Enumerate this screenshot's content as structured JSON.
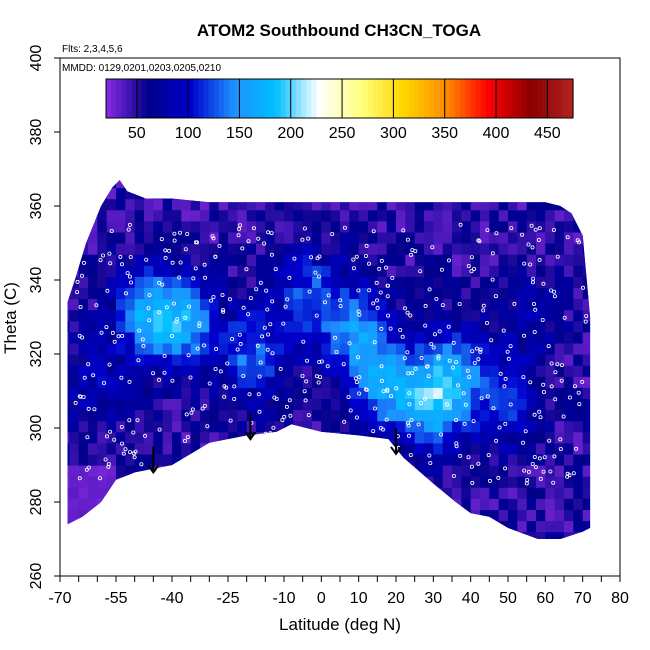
{
  "chart_data": {
    "type": "heatmap",
    "title": "ATOM2 Southbound CH3CN_TOGA",
    "annotations": {
      "flights": "Flts: 2,3,4,5,6",
      "dates": "MMDD: 0129,0201,0203,0205,0210"
    },
    "xlabel": "Latitude (deg N)",
    "ylabel": "Theta (C)",
    "xlim": [
      -70,
      80
    ],
    "ylim": [
      260,
      400
    ],
    "x_ticks": [
      -70,
      -65,
      -60,
      -55,
      -50,
      -45,
      -40,
      -35,
      -30,
      -25,
      -20,
      -15,
      -10,
      -5,
      0,
      5,
      10,
      15,
      20,
      25,
      30,
      35,
      40,
      45,
      50,
      55,
      60,
      65,
      70,
      75,
      80
    ],
    "x_tick_labels": [
      "-70",
      "-55",
      "-40",
      "-25",
      "-10",
      "0",
      "10",
      "20",
      "30",
      "40",
      "50",
      "60",
      "70",
      "80"
    ],
    "x_label_values": [
      -70,
      -55,
      -40,
      -25,
      -10,
      0,
      10,
      20,
      30,
      40,
      50,
      60,
      70,
      80
    ],
    "y_ticks": [
      260,
      280,
      300,
      320,
      340,
      360,
      380,
      400
    ],
    "y_tick_labels": [
      "260",
      "280",
      "300",
      "320",
      "340",
      "360",
      "380",
      "400"
    ],
    "colorbar": {
      "min": 20,
      "max": 475,
      "tick_values": [
        50,
        100,
        150,
        200,
        250,
        300,
        350,
        400,
        450
      ],
      "tick_labels": [
        "50",
        "100",
        "150",
        "200",
        "250",
        "300",
        "350",
        "400",
        "450"
      ],
      "colors": [
        "#8a2be2",
        "#00008b",
        "#0000cd",
        "#1e90ff",
        "#00bfff",
        "#ffffff",
        "#ffff80",
        "#ffd700",
        "#ff8c00",
        "#ff0000",
        "#8b0000",
        "#b22222"
      ]
    },
    "domain_outline": {
      "upper": [
        [
          -68,
          334
        ],
        [
          -66,
          340
        ],
        [
          -63,
          350
        ],
        [
          -59,
          360
        ],
        [
          -56,
          365
        ],
        [
          -54,
          367
        ],
        [
          -52,
          364
        ],
        [
          -47,
          362
        ],
        [
          -40,
          362
        ],
        [
          -30,
          361
        ],
        [
          -20,
          361
        ],
        [
          -10,
          361
        ],
        [
          0,
          361
        ],
        [
          10,
          361
        ],
        [
          20,
          361
        ],
        [
          30,
          361
        ],
        [
          40,
          361
        ],
        [
          50,
          361
        ],
        [
          60,
          361
        ],
        [
          64,
          360
        ],
        [
          67,
          358
        ],
        [
          70,
          352
        ],
        [
          72,
          330
        ],
        [
          72,
          273
        ]
      ],
      "lower": [
        [
          -68,
          274
        ],
        [
          -64,
          276
        ],
        [
          -59,
          280
        ],
        [
          -55,
          286
        ],
        [
          -50,
          288
        ],
        [
          -40,
          290
        ],
        [
          -30,
          296
        ],
        [
          -20,
          298
        ],
        [
          -12,
          299
        ],
        [
          -8,
          301
        ],
        [
          0,
          299
        ],
        [
          10,
          298
        ],
        [
          18,
          297
        ],
        [
          22,
          292
        ],
        [
          30,
          285
        ],
        [
          36,
          280
        ],
        [
          40,
          277
        ],
        [
          45,
          276
        ],
        [
          50,
          273
        ],
        [
          58,
          270
        ],
        [
          64,
          270
        ],
        [
          70,
          272
        ]
      ]
    },
    "mean_field": 50,
    "enhancements": [
      {
        "x": -48,
        "y": 330,
        "value": 150
      },
      {
        "x": -38,
        "y": 327,
        "value": 150
      },
      {
        "x": -20,
        "y": 318,
        "value": 130
      },
      {
        "x": -5,
        "y": 335,
        "value": 120
      },
      {
        "x": 8,
        "y": 325,
        "value": 140
      },
      {
        "x": 15,
        "y": 310,
        "value": 140
      },
      {
        "x": 28,
        "y": 305,
        "value": 170
      },
      {
        "x": 35,
        "y": 315,
        "value": 130
      },
      {
        "x": 48,
        "y": 305,
        "value": 110
      },
      {
        "x": -62,
        "y": 310,
        "value": 90
      },
      {
        "x": 55,
        "y": 330,
        "value": 80
      }
    ],
    "arrows": [
      {
        "x": -45,
        "y_start": 295,
        "y_end": 288
      },
      {
        "x": -19,
        "y_start": 304,
        "y_end": 297
      },
      {
        "x": 20,
        "y_start": 300,
        "y_end": 293
      }
    ]
  }
}
